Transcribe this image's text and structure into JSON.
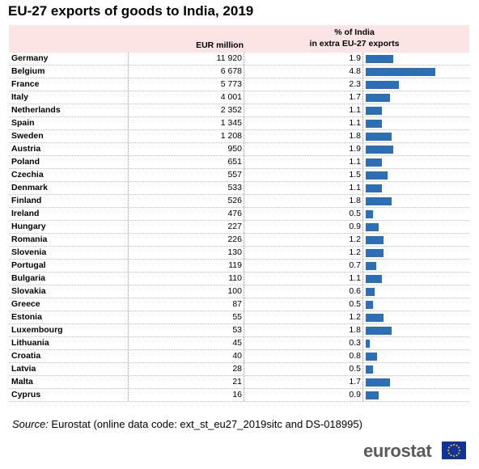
{
  "title": "EU-27 exports of goods to India, 2019",
  "columns": {
    "eur": "EUR million",
    "pct_line1": "% of India",
    "pct_line2": "in extra EU-27 exports"
  },
  "source": {
    "label": "Source:",
    "text": " Eurostat (online data code: ext_st_eu27_2019sitc and DS-018995)"
  },
  "logo": {
    "text": "eurostat",
    "flag_color": "#12339a",
    "star_color": "#ffcc00"
  },
  "colors": {
    "header_bg": "#fce3e4",
    "bar": "#2e6eb5"
  },
  "chart_data": {
    "type": "table",
    "title": "EU-27 exports of goods to India, 2019",
    "rows": [
      {
        "country": "Germany",
        "eur": "11 920",
        "pct": "1.9",
        "pct_value": 1.9
      },
      {
        "country": "Belgium",
        "eur": "6 678",
        "pct": "4.8",
        "pct_value": 4.8
      },
      {
        "country": "France",
        "eur": "5 773",
        "pct": "2.3",
        "pct_value": 2.3
      },
      {
        "country": "Italy",
        "eur": "4 001",
        "pct": "1.7",
        "pct_value": 1.7
      },
      {
        "country": "Netherlands",
        "eur": "2 352",
        "pct": "1.1",
        "pct_value": 1.1
      },
      {
        "country": "Spain",
        "eur": "1 345",
        "pct": "1.1",
        "pct_value": 1.1
      },
      {
        "country": "Sweden",
        "eur": "1 208",
        "pct": "1.8",
        "pct_value": 1.8
      },
      {
        "country": "Austria",
        "eur": "950",
        "pct": "1.9",
        "pct_value": 1.9
      },
      {
        "country": "Poland",
        "eur": "651",
        "pct": "1.1",
        "pct_value": 1.1
      },
      {
        "country": "Czechia",
        "eur": "557",
        "pct": "1.5",
        "pct_value": 1.5
      },
      {
        "country": "Denmark",
        "eur": "533",
        "pct": "1.1",
        "pct_value": 1.1
      },
      {
        "country": "Finland",
        "eur": "526",
        "pct": "1.8",
        "pct_value": 1.8
      },
      {
        "country": "Ireland",
        "eur": "476",
        "pct": "0.5",
        "pct_value": 0.5
      },
      {
        "country": "Hungary",
        "eur": "227",
        "pct": "0.9",
        "pct_value": 0.9
      },
      {
        "country": "Romania",
        "eur": "226",
        "pct": "1.2",
        "pct_value": 1.2
      },
      {
        "country": "Slovenia",
        "eur": "130",
        "pct": "1.2",
        "pct_value": 1.2
      },
      {
        "country": "Portugal",
        "eur": "119",
        "pct": "0.7",
        "pct_value": 0.7
      },
      {
        "country": "Bulgaria",
        "eur": "110",
        "pct": "1.1",
        "pct_value": 1.1
      },
      {
        "country": "Slovakia",
        "eur": "100",
        "pct": "0.6",
        "pct_value": 0.6
      },
      {
        "country": "Greece",
        "eur": "87",
        "pct": "0.5",
        "pct_value": 0.5
      },
      {
        "country": "Estonia",
        "eur": "55",
        "pct": "1.2",
        "pct_value": 1.2
      },
      {
        "country": "Luxembourg",
        "eur": "53",
        "pct": "1.8",
        "pct_value": 1.8
      },
      {
        "country": "Lithuania",
        "eur": "45",
        "pct": "0.3",
        "pct_value": 0.3
      },
      {
        "country": "Croatia",
        "eur": "40",
        "pct": "0.8",
        "pct_value": 0.8
      },
      {
        "country": "Latvia",
        "eur": "28",
        "pct": "0.5",
        "pct_value": 0.5
      },
      {
        "country": "Malta",
        "eur": "21",
        "pct": "1.7",
        "pct_value": 1.7
      },
      {
        "country": "Cyprus",
        "eur": "16",
        "pct": "0.9",
        "pct_value": 0.9
      }
    ],
    "bar_max": 4.8
  }
}
